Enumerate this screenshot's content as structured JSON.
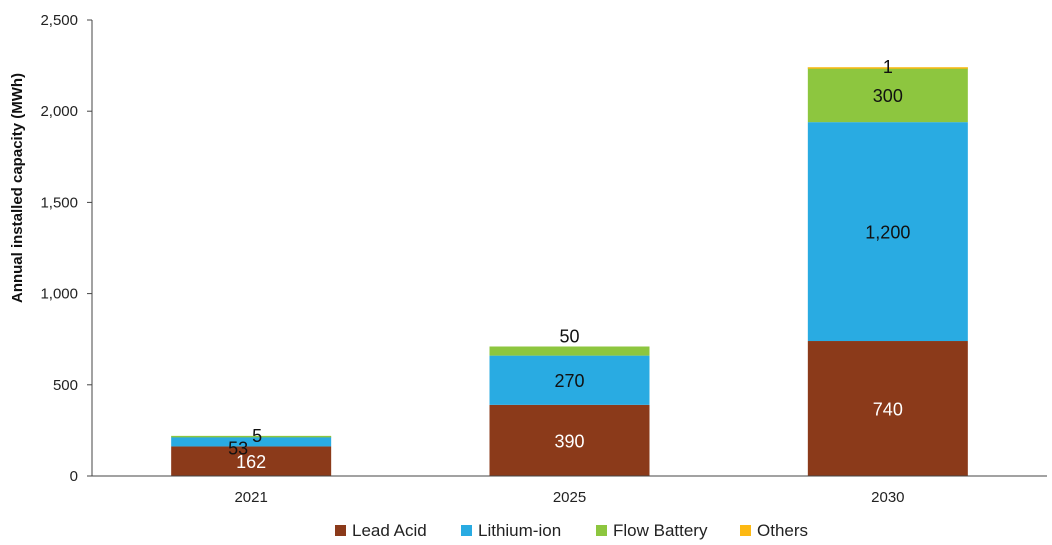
{
  "chart_data": {
    "type": "bar",
    "stacked": true,
    "categories": [
      "2021",
      "2025",
      "2030"
    ],
    "series": [
      {
        "name": "Lead Acid",
        "values": [
          162,
          390,
          740
        ],
        "color": "#8B3A1A",
        "label_color": "#ffffff"
      },
      {
        "name": "Lithium-ion",
        "values": [
          53,
          270,
          1200
        ],
        "color": "#29ABE2",
        "label_color": "#111111"
      },
      {
        "name": "Flow Battery",
        "values": [
          5,
          50,
          300
        ],
        "color": "#8DC63F",
        "label_color": "#111111"
      },
      {
        "name": "Others",
        "values": [
          0,
          0,
          1
        ],
        "color": "#FDB913",
        "label_color": "#111111"
      }
    ],
    "data_labels": [
      [
        "162",
        "390",
        "740"
      ],
      [
        "53",
        "270",
        "1,200"
      ],
      [
        "5",
        "50",
        "300"
      ],
      [
        "",
        "",
        "1"
      ]
    ],
    "ylabel": "Annual installed capacity (MWh)",
    "xlabel": "",
    "ylim": [
      0,
      2500
    ],
    "yticks": [
      0,
      500,
      1000,
      1500,
      2000,
      2500
    ],
    "ytick_labels": [
      "0",
      "500",
      "1,000",
      "1,500",
      "2,000",
      "2,500"
    ],
    "grid": false,
    "legend_position": "bottom"
  }
}
